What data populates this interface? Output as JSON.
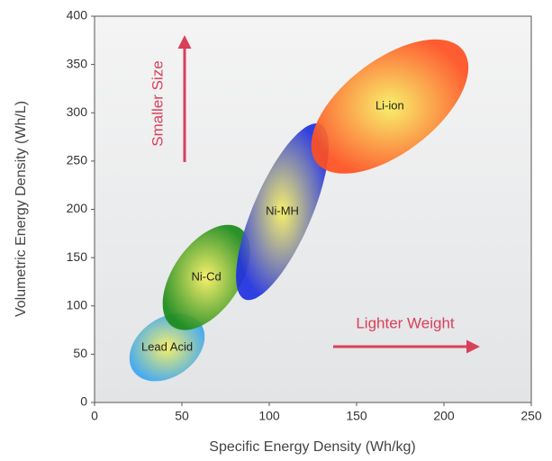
{
  "chart_data": {
    "type": "region",
    "x_label": "Specific Energy Density (Wh/kg)",
    "y_label": "Volumetric Energy Density (Wh/L)",
    "xlim": [
      0,
      250
    ],
    "xticks": [
      0,
      50,
      100,
      150,
      200,
      250
    ],
    "ylim": [
      0,
      400
    ],
    "yticks": [
      0,
      50,
      100,
      150,
      200,
      250,
      300,
      350,
      400
    ],
    "regions": [
      {
        "name": "Lead Acid",
        "color": "#3aa6f0",
        "x": [
          20,
          63
        ],
        "y": [
          22,
          92
        ]
      },
      {
        "name": "Ni-Cd",
        "color": "#1a8a1a",
        "x": [
          39,
          89
        ],
        "y": [
          75,
          184
        ]
      },
      {
        "name": "Ni-MH",
        "color": "#2030e0",
        "x": [
          81,
          134
        ],
        "y": [
          106,
          289
        ]
      },
      {
        "name": "Li-ion",
        "color": "#ff5020",
        "x": [
          124,
          214
        ],
        "y": [
          237,
          376
        ]
      }
    ],
    "annotations": [
      "Smaller Size",
      "Lighter Weight"
    ]
  }
}
